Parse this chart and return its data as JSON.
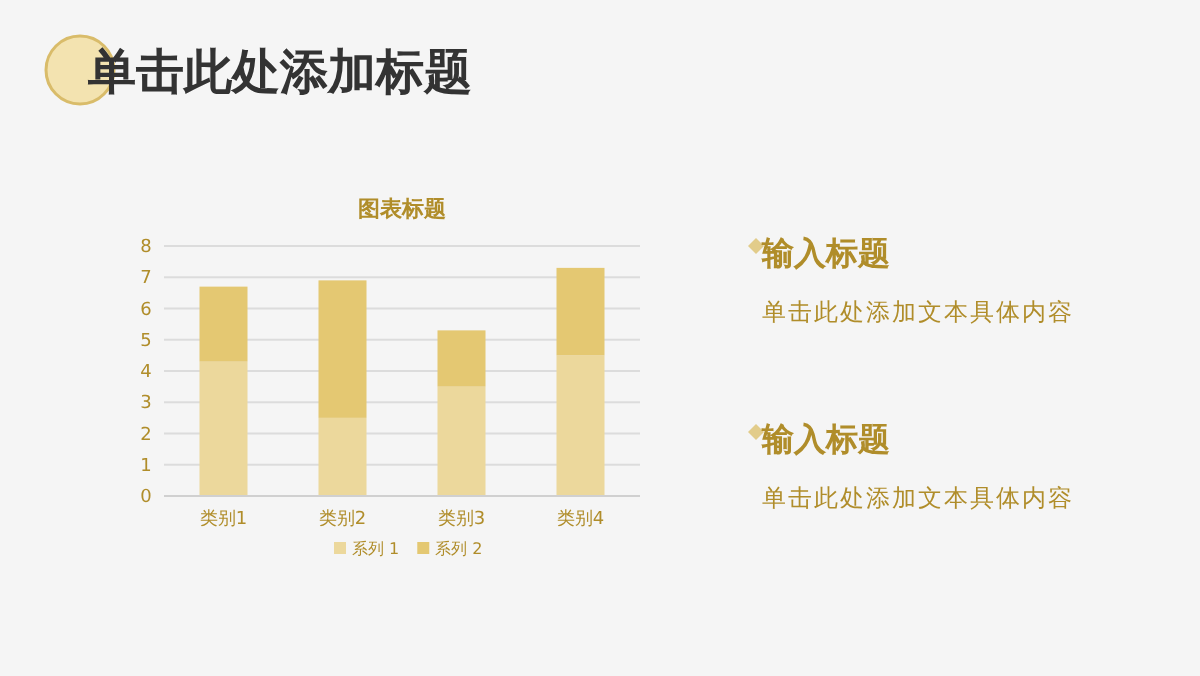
{
  "chart_data": [
    {
      "type": "other",
      "title": "单击此处添加标题",
      "annotations": [
        "输入标题",
        "单击此处添加文本具体内容",
        "输入标题",
        "单击此处添加文本具体内容"
      ]
    },
    {
      "type": "bar",
      "title": "图表标题",
      "stacked": true,
      "categories": [
        "类别1",
        "类别2",
        "类别3",
        "类别4"
      ],
      "series": [
        {
          "name": "系列 1",
          "color": "#ecd89c",
          "values": [
            4.3,
            2.5,
            3.5,
            4.5
          ]
        },
        {
          "name": "系列 2",
          "color": "#e4c872",
          "values": [
            2.4,
            4.4,
            1.8,
            2.8
          ]
        }
      ],
      "ylim": [
        0,
        8
      ],
      "yticks": [
        0,
        1,
        2,
        3,
        4,
        5,
        6,
        7,
        8
      ],
      "grid": "y",
      "legend": "bottom"
    }
  ]
}
